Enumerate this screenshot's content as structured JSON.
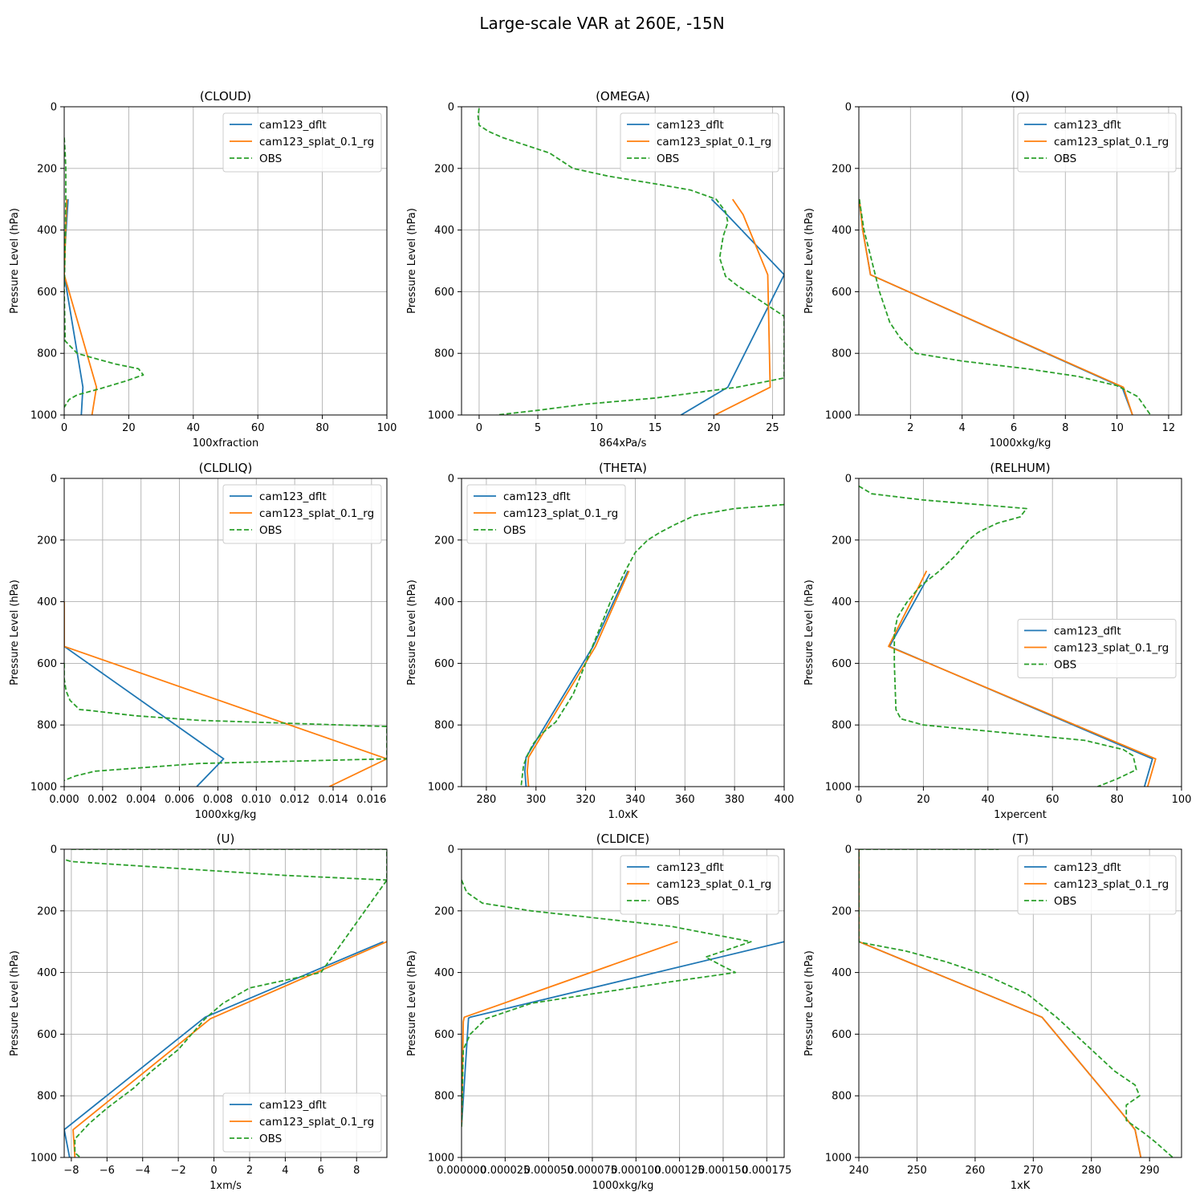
{
  "figure": {
    "title": "Large-scale VAR at 260E, -15N"
  },
  "legend_labels": [
    "cam123_dflt",
    "cam123_splat_0.1_rg",
    "OBS"
  ],
  "colors": {
    "dflt": "#1f77b4",
    "splat": "#ff7f0e",
    "obs": "#2ca02c",
    "grid": "#b0b0b0"
  },
  "chart_data": [
    {
      "type": "line",
      "title": "(CLOUD)",
      "xlabel": "100xfraction",
      "ylabel": "Pressure Level (hPa)",
      "xlim": [
        0,
        100
      ],
      "ylim": [
        1000,
        0
      ],
      "legend": "top-right",
      "xticks": [
        0,
        20,
        40,
        60,
        80,
        100
      ],
      "xticklabels": [
        "0",
        "20",
        "40",
        "60",
        "80",
        "100"
      ],
      "yticks": [
        0,
        200,
        400,
        600,
        800,
        1000
      ],
      "yticklabels": [
        "0",
        "200",
        "400",
        "600",
        "800",
        "1000"
      ],
      "series": [
        {
          "name": "cam123_dflt",
          "x": [
            1.2,
            0.3,
            0,
            5.8,
            5.3
          ],
          "y": [
            300,
            450,
            545,
            910,
            1000
          ]
        },
        {
          "name": "cam123_splat_0.1_rg",
          "x": [
            0.8,
            0.3,
            0,
            10,
            8.6
          ],
          "y": [
            300,
            450,
            545,
            910,
            1000
          ]
        },
        {
          "name": "OBS",
          "x": [
            0,
            0.3,
            0.5,
            0.5,
            0.4,
            0.2,
            0,
            0.3,
            4,
            9,
            16,
            23,
            24.5,
            19,
            11,
            4,
            1.5,
            0
          ],
          "y": [
            100,
            150,
            200,
            300,
            400,
            500,
            600,
            760,
            800,
            815,
            835,
            850,
            870,
            890,
            915,
            935,
            950,
            975
          ]
        }
      ]
    },
    {
      "type": "line",
      "title": "(OMEGA)",
      "xlabel": "864xPa/s",
      "ylabel": "Pressure Level (hPa)",
      "xlim": [
        -1.5,
        26
      ],
      "ylim": [
        1000,
        0
      ],
      "legend": "top-right",
      "xticks": [
        0,
        5,
        10,
        15,
        20,
        25
      ],
      "xticklabels": [
        "0",
        "5",
        "10",
        "15",
        "20",
        "25"
      ],
      "yticks": [
        0,
        200,
        400,
        600,
        800,
        1000
      ],
      "yticklabels": [
        "0",
        "200",
        "400",
        "600",
        "800",
        "1000"
      ],
      "series": [
        {
          "name": "cam123_dflt",
          "x": [
            19.8,
            21,
            26,
            21.2,
            17.2
          ],
          "y": [
            300,
            345,
            545,
            910,
            1000
          ]
        },
        {
          "name": "cam123_splat_0.1_rg",
          "x": [
            21.6,
            22.5,
            24.6,
            24.8,
            20.1
          ],
          "y": [
            300,
            350,
            545,
            910,
            1000
          ]
        },
        {
          "name": "OBS",
          "x": [
            0,
            -0.1,
            0,
            0.8,
            2,
            4,
            6,
            8,
            11,
            15,
            18,
            20.2,
            21,
            21.2,
            20.8,
            20.5,
            21,
            22,
            24,
            26,
            26,
            22,
            15,
            9,
            5,
            1.5
          ],
          "y": [
            5,
            30,
            60,
            80,
            100,
            125,
            150,
            200,
            225,
            250,
            270,
            300,
            340,
            375,
            420,
            490,
            550,
            580,
            630,
            680,
            880,
            910,
            945,
            965,
            985,
            1000
          ]
        }
      ]
    },
    {
      "type": "line",
      "title": "(Q)",
      "xlabel": "1000xkg/kg",
      "ylabel": "Pressure Level (hPa)",
      "xlim": [
        0,
        12.5
      ],
      "ylim": [
        1000,
        0
      ],
      "legend": "top-right",
      "xticks": [
        2,
        4,
        6,
        8,
        10,
        12
      ],
      "xticklabels": [
        "2",
        "4",
        "6",
        "8",
        "10",
        "12"
      ],
      "yticks": [
        0,
        200,
        400,
        600,
        800,
        1000
      ],
      "yticklabels": [
        "0",
        "200",
        "400",
        "600",
        "800",
        "1000"
      ],
      "series": [
        {
          "name": "cam123_dflt",
          "x": [
            0.02,
            0.15,
            0.45,
            10.2,
            10.6
          ],
          "y": [
            300,
            400,
            545,
            910,
            1000
          ]
        },
        {
          "name": "cam123_splat_0.1_rg",
          "x": [
            0.02,
            0.15,
            0.45,
            10.25,
            10.6
          ],
          "y": [
            300,
            400,
            545,
            910,
            1000
          ]
        },
        {
          "name": "OBS",
          "x": [
            0.02,
            0.2,
            0.5,
            0.8,
            1.0,
            1.2,
            1.6,
            2.2,
            4,
            6.5,
            8.5,
            10,
            10.8,
            11.3
          ],
          "y": [
            300,
            400,
            500,
            600,
            650,
            700,
            750,
            800,
            825,
            850,
            875,
            905,
            940,
            1000
          ]
        }
      ]
    },
    {
      "type": "line",
      "title": "(CLDLIQ)",
      "xlabel": "1000xkg/kg",
      "ylabel": "Pressure Level (hPa)",
      "xlim": [
        0,
        0.0168
      ],
      "ylim": [
        1000,
        0
      ],
      "legend": "top-right",
      "xticks": [
        0,
        0.002,
        0.004,
        0.006,
        0.008,
        0.01,
        0.012,
        0.014,
        0.016
      ],
      "xticklabels": [
        "0.000",
        "0.002",
        "0.004",
        "0.006",
        "0.008",
        "0.010",
        "0.012",
        "0.014",
        "0.016"
      ],
      "yticks": [
        0,
        200,
        400,
        600,
        800,
        1000
      ],
      "yticklabels": [
        "0",
        "200",
        "400",
        "600",
        "800",
        "1000"
      ],
      "series": [
        {
          "name": "cam123_dflt",
          "x": [
            0,
            0,
            0.0083,
            0.0069
          ],
          "y": [
            400,
            545,
            910,
            1000
          ]
        },
        {
          "name": "cam123_splat_0.1_rg",
          "x": [
            0,
            0,
            0.0168,
            0.0138
          ],
          "y": [
            400,
            545,
            910,
            1000
          ]
        },
        {
          "name": "OBS",
          "x": [
            0,
            0,
            0.0001,
            0.0003,
            0.0008,
            0.0012,
            0.0037,
            0.007,
            0.0168,
            0.0168,
            0.007,
            0.0016,
            0.0006,
            0
          ],
          "y": [
            600,
            650,
            690,
            720,
            750,
            752,
            770,
            785,
            805,
            910,
            925,
            950,
            965,
            980
          ]
        }
      ]
    },
    {
      "type": "line",
      "title": "(THETA)",
      "xlabel": "1.0xK",
      "ylabel": "Pressure Level (hPa)",
      "xlim": [
        270,
        400
      ],
      "ylim": [
        1000,
        0
      ],
      "legend": "top-left",
      "xticks": [
        280,
        300,
        320,
        340,
        360,
        380,
        400
      ],
      "xticklabels": [
        "280",
        "300",
        "320",
        "340",
        "360",
        "380",
        "400"
      ],
      "yticks": [
        0,
        200,
        400,
        600,
        800,
        1000
      ],
      "yticklabels": [
        "0",
        "200",
        "400",
        "600",
        "800",
        "1000"
      ],
      "series": [
        {
          "name": "cam123_dflt",
          "x": [
            337,
            323,
            296,
            295.5,
            296
          ],
          "y": [
            300,
            545,
            905,
            950,
            1000
          ]
        },
        {
          "name": "cam123_splat_0.1_rg",
          "x": [
            337.5,
            324,
            297,
            296.5,
            297
          ],
          "y": [
            300,
            545,
            905,
            950,
            1000
          ]
        },
        {
          "name": "OBS",
          "x": [
            400,
            380,
            364,
            356,
            350,
            345,
            340,
            336,
            330,
            325,
            320,
            315,
            308,
            302,
            299,
            297,
            295,
            294
          ],
          "y": [
            85,
            98,
            120,
            150,
            175,
            200,
            240,
            300,
            400,
            500,
            600,
            700,
            790,
            830,
            860,
            890,
            930,
            1000
          ]
        }
      ]
    },
    {
      "type": "line",
      "title": "(RELHUM)",
      "xlabel": "1xpercent",
      "ylabel": "Pressure Level (hPa)",
      "xlim": [
        0,
        100
      ],
      "ylim": [
        1000,
        0
      ],
      "legend": "center-right",
      "xticks": [
        0,
        20,
        40,
        60,
        80,
        100
      ],
      "xticklabels": [
        "0",
        "20",
        "40",
        "60",
        "80",
        "100"
      ],
      "yticks": [
        0,
        200,
        400,
        600,
        800,
        1000
      ],
      "yticklabels": [
        "0",
        "200",
        "400",
        "600",
        "800",
        "1000"
      ],
      "series": [
        {
          "name": "cam123_dflt",
          "x": [
            22,
            9.5,
            91,
            88.5
          ],
          "y": [
            310,
            545,
            910,
            1000
          ]
        },
        {
          "name": "cam123_splat_0.1_rg",
          "x": [
            21,
            9.2,
            92,
            89.5
          ],
          "y": [
            300,
            545,
            910,
            1000
          ]
        },
        {
          "name": "OBS",
          "x": [
            0,
            4,
            20,
            52,
            50,
            43,
            37,
            34,
            30,
            25,
            19,
            15,
            12,
            11,
            11,
            11.5,
            13,
            20,
            45,
            70,
            82,
            85,
            86,
            80,
            74
          ],
          "y": [
            25,
            50,
            70,
            98,
            125,
            145,
            175,
            200,
            250,
            300,
            350,
            400,
            450,
            500,
            600,
            750,
            780,
            800,
            825,
            850,
            880,
            900,
            945,
            975,
            1000
          ]
        }
      ]
    },
    {
      "type": "line",
      "title": "(U)",
      "xlabel": "1xm/s",
      "ylabel": "Pressure Level (hPa)",
      "xlim": [
        -8.4,
        9.7
      ],
      "ylim": [
        1000,
        0
      ],
      "legend": "bottom-right",
      "xticks": [
        -8,
        -6,
        -4,
        -2,
        0,
        2,
        4,
        6,
        8
      ],
      "xticklabels": [
        "−8",
        "−6",
        "−4",
        "−2",
        "0",
        "2",
        "4",
        "6",
        "8"
      ],
      "yticks": [
        0,
        200,
        400,
        600,
        800,
        1000
      ],
      "yticklabels": [
        "0",
        "200",
        "400",
        "600",
        "800",
        "1000"
      ],
      "series": [
        {
          "name": "cam123_dflt",
          "x": [
            9.5,
            -0.5,
            -8.4,
            -8.1
          ],
          "y": [
            300,
            545,
            910,
            1000
          ]
        },
        {
          "name": "cam123_splat_0.1_rg",
          "x": [
            9.7,
            -0.2,
            -7.9,
            -7.8
          ],
          "y": [
            300,
            550,
            910,
            1000
          ]
        },
        {
          "name": "OBS",
          "x": [
            -8,
            -6,
            9.7,
            9.7,
            6,
            2,
            0.5,
            -0.5,
            -2,
            -3.5,
            -4.5,
            -6,
            -7,
            -7.8,
            -7.8,
            -7.5
          ],
          "y": [
            0,
            0,
            0,
            100,
            400,
            450,
            500,
            550,
            650,
            720,
            775,
            840,
            890,
            940,
            985,
            1000
          ]
        },
        {
          "name": "OBS",
          "x": [
            -8.3,
            -8,
            -4,
            0,
            4,
            9.7
          ],
          "y": [
            35,
            40,
            55,
            70,
            85,
            100
          ]
        }
      ]
    },
    {
      "type": "line",
      "title": "(CLDICE)",
      "xlabel": "1000xkg/kg",
      "ylabel": "Pressure Level (hPa)",
      "xlim": [
        0,
        0.000185
      ],
      "ylim": [
        1000,
        0
      ],
      "legend": "top-right",
      "xticks": [
        0,
        2.5e-05,
        5e-05,
        7.5e-05,
        0.0001,
        0.000125,
        0.00015,
        0.000175
      ],
      "xticklabels": [
        "0.000000",
        "0.000025",
        "0.000050",
        "0.000075",
        "0.000100",
        "0.000125",
        "0.000150",
        "0.000175"
      ],
      "yticks": [
        0,
        200,
        400,
        600,
        800,
        1000
      ],
      "yticklabels": [
        "0",
        "200",
        "400",
        "600",
        "800",
        "1000"
      ],
      "series": [
        {
          "name": "cam123_dflt",
          "x": [
            0.000185,
            5e-06,
            4e-06,
            0
          ],
          "y": [
            300,
            545,
            548,
            900
          ]
        },
        {
          "name": "cam123_splat_0.1_rg",
          "x": [
            0.000124,
            1.5e-06,
            1e-06,
            0
          ],
          "y": [
            300,
            545,
            560,
            900
          ]
        },
        {
          "name": "OBS",
          "x": [
            0,
            3e-06,
            1.2e-05,
            4e-05,
            0.00012,
            0.000166,
            0.00014,
            0.00015,
            0.000157,
            0.00012,
            4e-05,
            1.4e-05,
            5e-06,
            1e-06,
            0
          ],
          "y": [
            100,
            140,
            175,
            200,
            250,
            300,
            350,
            380,
            400,
            430,
            500,
            550,
            600,
            650,
            900
          ]
        }
      ]
    },
    {
      "type": "line",
      "title": "(T)",
      "xlabel": "1xK",
      "ylabel": "Pressure Level (hPa)",
      "xlim": [
        240,
        295.5
      ],
      "ylim": [
        1000,
        0
      ],
      "legend": "top-right",
      "xticks": [
        240,
        250,
        260,
        270,
        280,
        290
      ],
      "xticklabels": [
        "240",
        "250",
        "260",
        "270",
        "280",
        "290"
      ],
      "yticks": [
        0,
        200,
        400,
        600,
        800,
        1000
      ],
      "yticklabels": [
        "0",
        "200",
        "400",
        "600",
        "800",
        "1000"
      ],
      "series": [
        {
          "name": "cam123_dflt",
          "x": [
            240,
            240,
            271.5,
            285,
            287.5,
            288.5
          ],
          "y": [
            0,
            300,
            545,
            850,
            910,
            1000
          ]
        },
        {
          "name": "cam123_splat_0.1_rg",
          "x": [
            240,
            240,
            271.5,
            285,
            287.5,
            288.5
          ],
          "y": [
            0,
            300,
            545,
            850,
            910,
            1000
          ]
        },
        {
          "name": "OBS",
          "x": [
            240,
            264,
            240,
            240,
            241,
            248,
            255,
            262,
            269,
            274,
            280,
            284,
            287.5,
            288.3,
            286,
            286,
            289,
            291,
            294
          ],
          "y": [
            0,
            0,
            0,
            300,
            305,
            330,
            365,
            410,
            470,
            545,
            650,
            720,
            765,
            800,
            830,
            880,
            920,
            950,
            1000
          ]
        }
      ]
    }
  ]
}
